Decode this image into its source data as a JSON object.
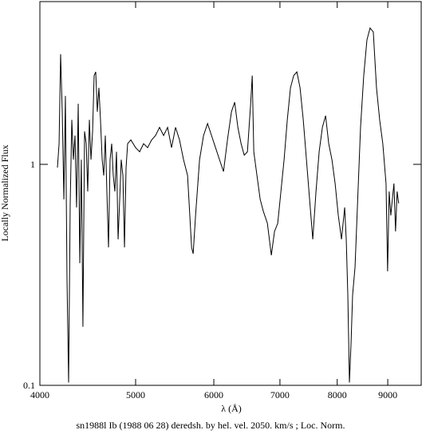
{
  "chart_data": {
    "type": "line",
    "title": "sn1988l Ib (1988 06 28) deredsh. by hel. vel.  2050. km/s ;  Loc. Norm.",
    "x_label": "λ (Å)",
    "y_label": "Locally Normalized Flux",
    "x_scale": "log",
    "y_scale": "log",
    "xlim": [
      4000,
      9730
    ],
    "ylim": [
      0.1,
      5.45
    ],
    "xticks": [
      4000,
      5000,
      6000,
      7000,
      8000,
      9000
    ],
    "yticks": [
      0.1,
      1
    ],
    "color": "#000000",
    "x": [
      4167,
      4183,
      4198,
      4214,
      4230,
      4245,
      4261,
      4277,
      4293,
      4309,
      4325,
      4341,
      4357,
      4374,
      4390,
      4406,
      4422,
      4439,
      4456,
      4472,
      4489,
      4506,
      4523,
      4539,
      4556,
      4573,
      4590,
      4607,
      4625,
      4642,
      4659,
      4676,
      4694,
      4711,
      4729,
      4746,
      4764,
      4782,
      4800,
      4818,
      4835,
      4854,
      4872,
      4890,
      4908,
      4945,
      5000,
      5047,
      5094,
      5142,
      5190,
      5238,
      5287,
      5337,
      5387,
      5437,
      5488,
      5539,
      5591,
      5644,
      5697,
      5718,
      5750,
      5804,
      5858,
      5913,
      5968,
      6024,
      6080,
      6137,
      6194,
      6252,
      6299,
      6346,
      6394,
      6441,
      6489,
      6538,
      6562,
      6586,
      6635,
      6685,
      6735,
      6798,
      6861,
      6912,
      6964,
      7016,
      7068,
      7121,
      7174,
      7228,
      7282,
      7336,
      7391,
      7446,
      7501,
      7557,
      7614,
      7670,
      7728,
      7786,
      7843,
      7902,
      7961,
      8020,
      8080,
      8140,
      8170,
      8200,
      8231,
      8262,
      8292,
      8339,
      8385,
      8447,
      8510,
      8574,
      8637,
      8702,
      8767,
      8832,
      8897,
      8964,
      8997,
      9030,
      9064,
      9097,
      9131,
      9165,
      9199,
      9233
    ],
    "values": [
      0.967,
      1.24,
      3.15,
      1.73,
      0.694,
      2.04,
      0.302,
      0.103,
      0.666,
      1.59,
      1.05,
      1.35,
      0.638,
      1.88,
      0.357,
      1.05,
      0.184,
      1.41,
      1.24,
      0.754,
      1.59,
      1.05,
      1.41,
      2.52,
      2.62,
      1.73,
      2.22,
      1.59,
      1.05,
      0.89,
      1.35,
      0.754,
      0.421,
      1.05,
      1.24,
      0.89,
      0.754,
      1.14,
      0.458,
      0.694,
      1.05,
      0.89,
      0.421,
      0.967,
      1.24,
      1.29,
      1.19,
      1.14,
      1.24,
      1.19,
      1.29,
      1.35,
      1.47,
      1.35,
      1.47,
      1.19,
      1.47,
      1.29,
      1.05,
      0.89,
      0.421,
      0.394,
      0.587,
      1.05,
      1.35,
      1.53,
      1.35,
      1.19,
      1.05,
      0.928,
      1.29,
      1.73,
      1.91,
      1.47,
      1.24,
      1.1,
      1.14,
      1.88,
      2.52,
      1.14,
      0.89,
      0.694,
      0.612,
      0.541,
      0.388,
      0.497,
      0.541,
      0.754,
      1.05,
      1.59,
      2.22,
      2.52,
      2.62,
      2.22,
      1.59,
      1.05,
      0.694,
      0.458,
      0.754,
      1.14,
      1.47,
      1.66,
      1.24,
      1.05,
      0.819,
      0.587,
      0.458,
      0.638,
      0.458,
      0.256,
      0.103,
      0.155,
      0.256,
      0.342,
      0.638,
      1.47,
      2.52,
      3.66,
      4.14,
      3.97,
      2.22,
      1.59,
      1.24,
      0.819,
      0.328,
      0.754,
      0.587,
      0.694,
      0.819,
      0.497,
      0.754,
      0.666
    ]
  }
}
